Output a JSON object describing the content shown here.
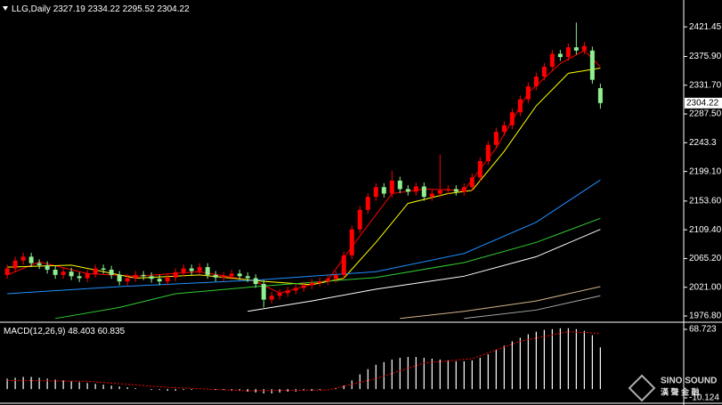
{
  "chart_data": [
    {
      "type": "candlestick",
      "title": "LLG,Daily",
      "up_color": "#ff0000",
      "down_color": "#90ee90",
      "xlim": [
        -0.9,
        84.4
      ],
      "ylim": [
        1970,
        2460
      ],
      "yticks": [
        2421.45,
        {
          "value": 2375.9,
          "label": "2375.90"
        },
        {
          "value": 2331.7,
          "label": "2331.70"
        },
        {
          "value": 2287.5,
          "label": "2287.50"
        },
        2243.3,
        {
          "value": 2199.1,
          "label": "2199.10"
        },
        {
          "value": 2153.6,
          "label": "2153.60"
        },
        {
          "value": 2109.4,
          "label": "2109.40"
        },
        {
          "value": 2065.2,
          "label": "2065.20"
        },
        {
          "value": 2021,
          "label": "2021.00"
        },
        {
          "value": 1976.8,
          "label": "1976.80"
        }
      ],
      "open": [
        2040,
        2050,
        2062,
        2068,
        2058,
        2055,
        2048,
        2040,
        2045,
        2038,
        2035,
        2042,
        2050,
        2048,
        2040,
        2030,
        2035,
        2040,
        2038,
        2034,
        2030,
        2036,
        2044,
        2050,
        2046,
        2052,
        2040,
        2036,
        2038,
        2042,
        2038,
        2035,
        2026,
        2002,
        2008,
        2012,
        2016,
        2020,
        2024,
        2028,
        2030,
        2034,
        2040,
        2070,
        2110,
        2140,
        2160,
        2175,
        2165,
        2185,
        2172,
        2168,
        2176,
        2160,
        2165,
        2170,
        2172,
        2168,
        2175,
        2190,
        2215,
        2240,
        2260,
        2270,
        2290,
        2310,
        2330,
        2345,
        2360,
        2380,
        2375,
        2390,
        2385,
        2385,
        2327.19
      ],
      "high": [
        2056,
        2068,
        2074,
        2074,
        2064,
        2061,
        2054,
        2051,
        2051,
        2044,
        2048,
        2056,
        2056,
        2054,
        2046,
        2041,
        2046,
        2046,
        2044,
        2040,
        2042,
        2050,
        2056,
        2056,
        2058,
        2058,
        2046,
        2044,
        2048,
        2048,
        2044,
        2041,
        2032,
        2014,
        2018,
        2022,
        2026,
        2030,
        2034,
        2036,
        2040,
        2046,
        2076,
        2116,
        2146,
        2166,
        2181,
        2181,
        2200,
        2191,
        2178,
        2182,
        2182,
        2171,
        2225,
        2178,
        2178,
        2181,
        2196,
        2221,
        2246,
        2266,
        2276,
        2296,
        2316,
        2336,
        2351,
        2366,
        2386,
        2386,
        2396,
        2428,
        2398,
        2391,
        2334.22
      ],
      "low": [
        2034,
        2044,
        2056,
        2052,
        2049,
        2042,
        2034,
        2034,
        2032,
        2029,
        2029,
        2036,
        2042,
        2034,
        2024,
        2024,
        2029,
        2032,
        2028,
        2024,
        2024,
        2030,
        2038,
        2040,
        2040,
        2034,
        2030,
        2030,
        2032,
        2032,
        2029,
        2020,
        1990,
        1996,
        2002,
        2006,
        2010,
        2014,
        2018,
        2022,
        2024,
        2028,
        2034,
        2064,
        2104,
        2134,
        2154,
        2159,
        2159,
        2166,
        2162,
        2162,
        2154,
        2154,
        2159,
        2164,
        2162,
        2162,
        2169,
        2184,
        2209,
        2234,
        2254,
        2264,
        2284,
        2304,
        2324,
        2339,
        2354,
        2369,
        2369,
        2379,
        2379,
        2334,
        2295.52
      ],
      "close": [
        2050,
        2062,
        2068,
        2058,
        2055,
        2048,
        2040,
        2045,
        2038,
        2035,
        2042,
        2050,
        2048,
        2040,
        2030,
        2035,
        2040,
        2038,
        2034,
        2030,
        2036,
        2044,
        2050,
        2046,
        2052,
        2040,
        2036,
        2038,
        2042,
        2038,
        2035,
        2026,
        2002,
        2008,
        2012,
        2016,
        2020,
        2024,
        2028,
        2030,
        2034,
        2040,
        2070,
        2110,
        2140,
        2160,
        2175,
        2165,
        2185,
        2172,
        2168,
        2176,
        2160,
        2165,
        2170,
        2172,
        2168,
        2175,
        2190,
        2215,
        2240,
        2260,
        2270,
        2290,
        2310,
        2330,
        2345,
        2360,
        2380,
        2375,
        2390,
        2385,
        2392,
        2340,
        2304.22
      ],
      "lines": [
        {
          "color": "#ff0000",
          "x": [
            0,
            4,
            10,
            16,
            24,
            31,
            34,
            40,
            44,
            48,
            52,
            57,
            61,
            65,
            69,
            72,
            74
          ],
          "values": [
            2040,
            2060,
            2042,
            2038,
            2045,
            2030,
            2012,
            2032,
            2100,
            2165,
            2172,
            2170,
            2235,
            2320,
            2365,
            2385,
            2360
          ]
        },
        {
          "color": "#ffff00",
          "x": [
            0,
            8,
            16,
            24,
            32,
            38,
            42,
            46,
            50,
            55,
            58,
            62,
            66,
            70,
            74
          ],
          "values": [
            2052,
            2055,
            2035,
            2040,
            2030,
            2025,
            2035,
            2090,
            2150,
            2165,
            2170,
            2230,
            2300,
            2350,
            2358
          ]
        },
        {
          "color": "#1e90ff",
          "x": [
            0,
            14,
            31,
            46,
            57,
            66,
            74
          ],
          "values": [
            2011,
            2022,
            2032,
            2045,
            2073,
            2121,
            2186
          ]
        },
        {
          "color": "#32cd32",
          "x": [
            6,
            14,
            21,
            31,
            46,
            57,
            66,
            74
          ],
          "values": [
            1973,
            1990,
            2011,
            2022,
            2036,
            2059,
            2090,
            2127
          ]
        },
        {
          "color": "#ffffff",
          "x": [
            30,
            38,
            46,
            57,
            66,
            74
          ],
          "values": [
            1984,
            2000,
            2018,
            2038,
            2068,
            2110
          ]
        },
        {
          "color": "#d2b48c",
          "x": [
            49,
            57,
            66,
            74
          ],
          "values": [
            1973,
            1984,
            2000,
            2022
          ]
        },
        {
          "color": "#a9a9a9",
          "x": [
            57,
            66,
            74
          ],
          "values": [
            1973,
            1986,
            2008
          ]
        }
      ]
    },
    {
      "type": "macd",
      "title": "MACD(12,26,9)",
      "readout": [
        48.403,
        60.835
      ],
      "xlim": [
        -0.9,
        84.4
      ],
      "ylim": [
        -15.24,
        73.84
      ],
      "yticks": [
        68.723,
        -10.124
      ],
      "bar_color": "#ffffff",
      "signal_color": "#ff0000",
      "values": [
        12,
        13,
        14,
        14,
        13,
        12,
        11,
        10,
        9,
        8,
        7,
        6,
        5,
        4,
        3,
        2,
        1,
        0,
        -1,
        -1,
        -2,
        -2,
        -1,
        -1,
        0,
        0,
        -1,
        -1,
        -2,
        -2,
        -3,
        -4,
        -5,
        -5,
        -4,
        -3,
        -3,
        -2,
        -2,
        -1,
        0,
        1,
        4,
        10,
        17,
        23,
        28,
        31,
        34,
        36,
        37,
        37,
        36,
        35,
        34,
        33,
        32,
        32,
        33,
        36,
        40,
        45,
        50,
        55,
        59,
        63,
        66,
        68,
        69,
        70,
        70,
        69,
        67,
        62,
        48
      ],
      "signal": {
        "x": [
          0,
          10,
          20,
          30,
          40,
          46,
          52,
          58,
          64,
          70,
          74
        ],
        "values": [
          10,
          9,
          2,
          -2,
          -1,
          12,
          30,
          35,
          55,
          66,
          64
        ]
      }
    }
  ],
  "watermark": {
    "name": "SINO SOUND",
    "name_zh": "漢 聲 金 融"
  }
}
